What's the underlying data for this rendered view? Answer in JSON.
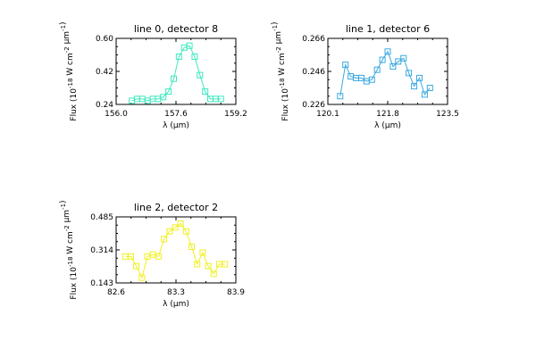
{
  "chart_data": [
    {
      "type": "line",
      "title": "line 0, detector 8",
      "xlabel": "λ (μm)",
      "ylabel": "Flux (10^-18 W cm^-2 μm^-1)",
      "xlim": [
        156.0,
        159.2
      ],
      "ylim": [
        0.24,
        0.6
      ],
      "xticks": [
        "156.0",
        "157.6",
        "159.2"
      ],
      "yticks": [
        "0.24",
        "0.42",
        "0.60"
      ],
      "color": "#3ce8c0",
      "marker": "square",
      "x": [
        156.42,
        156.56,
        156.7,
        156.84,
        156.98,
        157.12,
        157.26,
        157.4,
        157.54,
        157.68,
        157.82,
        157.96,
        158.1,
        158.24,
        158.38,
        158.52,
        158.66,
        158.8
      ],
      "y": [
        0.26,
        0.27,
        0.27,
        0.26,
        0.27,
        0.27,
        0.28,
        0.31,
        0.38,
        0.5,
        0.55,
        0.56,
        0.5,
        0.4,
        0.31,
        0.27,
        0.27,
        0.27
      ]
    },
    {
      "type": "line",
      "title": "line 1, detector 6",
      "xlabel": "λ (μm)",
      "ylabel": "Flux (10^-18 W cm^-2 μm^-1)",
      "xlim": [
        120.1,
        123.5
      ],
      "ylim": [
        0.226,
        0.266
      ],
      "xticks": [
        "120.1",
        "121.8",
        "123.5"
      ],
      "yticks": [
        "0.226",
        "0.246",
        "0.266"
      ],
      "color": "#3aa8e0",
      "marker": "square",
      "x": [
        120.45,
        120.6,
        120.75,
        120.9,
        121.05,
        121.2,
        121.35,
        121.5,
        121.65,
        121.8,
        121.95,
        122.1,
        122.25,
        122.4,
        122.55,
        122.7,
        122.85,
        123.0
      ],
      "y": [
        0.231,
        0.25,
        0.243,
        0.242,
        0.242,
        0.24,
        0.241,
        0.247,
        0.253,
        0.258,
        0.249,
        0.252,
        0.254,
        0.245,
        0.237,
        0.242,
        0.232,
        0.236
      ]
    },
    {
      "type": "line",
      "title": "line 2, detector 2",
      "xlabel": "λ (μm)",
      "ylabel": "Flux (10^-18 W cm^-2 μm^-1)",
      "xlim": [
        82.6,
        83.9
      ],
      "ylim": [
        0.143,
        0.485
      ],
      "xticks": [
        "82.6",
        "83.3",
        "83.9"
      ],
      "yticks": [
        "0.143",
        "0.314",
        "0.485"
      ],
      "color": "#f0f020",
      "marker": "square",
      "x": [
        82.7,
        82.76,
        82.82,
        82.88,
        82.94,
        83.0,
        83.06,
        83.12,
        83.18,
        83.24,
        83.3,
        83.36,
        83.42,
        83.48,
        83.54,
        83.6,
        83.66,
        83.72,
        83.78
      ],
      "y": [
        0.28,
        0.28,
        0.23,
        0.17,
        0.28,
        0.29,
        0.28,
        0.37,
        0.41,
        0.43,
        0.45,
        0.41,
        0.33,
        0.24,
        0.3,
        0.23,
        0.19,
        0.24,
        0.24
      ]
    }
  ]
}
